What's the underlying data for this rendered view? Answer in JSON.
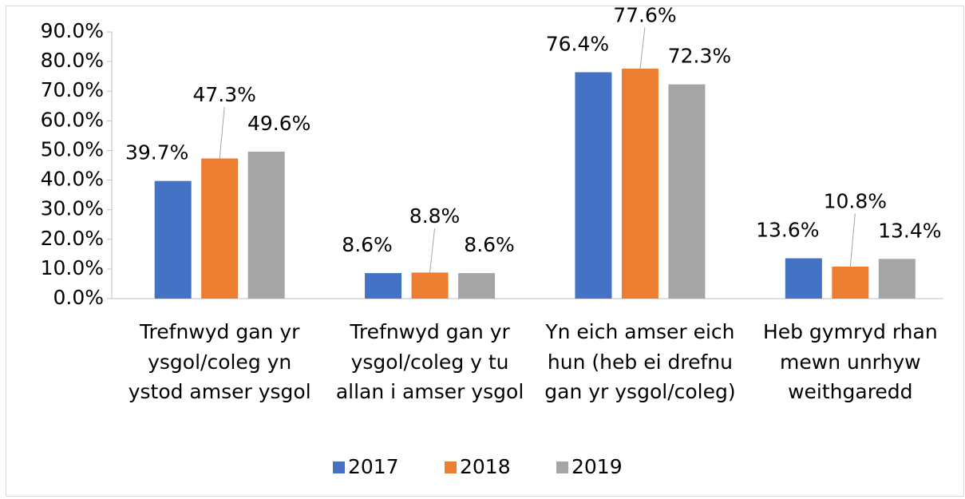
{
  "chart_data": {
    "type": "bar",
    "categories": [
      "Trefnwyd gan yr ysgol/coleg yn ystod amser ysgol",
      "Trefnwyd gan yr ysgol/coleg y tu allan i amser ysgol",
      "Yn eich amser eich hun (heb ei drefnu gan yr ysgol/coleg)",
      "Heb gymryd rhan mewn unrhyw weithgaredd"
    ],
    "series": [
      {
        "name": "2017",
        "color": "#4472c4",
        "values": [
          39.7,
          8.6,
          76.4,
          13.6
        ],
        "value_labels": [
          "39.7%",
          "8.6%",
          "76.4%",
          "13.6%"
        ]
      },
      {
        "name": "2018",
        "color": "#ed7d31",
        "values": [
          47.3,
          8.8,
          77.6,
          10.8
        ],
        "value_labels": [
          "47.3%",
          "8.8%",
          "77.6%",
          "10.8%"
        ]
      },
      {
        "name": "2019",
        "color": "#a5a5a5",
        "values": [
          49.6,
          8.6,
          72.3,
          13.4
        ],
        "value_labels": [
          "49.6%",
          "8.6%",
          "72.3%",
          "13.4%"
        ]
      }
    ],
    "ylim": [
      0,
      90
    ],
    "yticks": [
      {
        "value": 0,
        "label": "0.0%"
      },
      {
        "value": 10,
        "label": "10.0%"
      },
      {
        "value": 20,
        "label": "20.0%"
      },
      {
        "value": 30,
        "label": "30.0%"
      },
      {
        "value": 40,
        "label": "40.0%"
      },
      {
        "value": 50,
        "label": "50.0%"
      },
      {
        "value": 60,
        "label": "60.0%"
      },
      {
        "value": 70,
        "label": "70.0%"
      },
      {
        "value": 80,
        "label": "80.0%"
      },
      {
        "value": 90,
        "label": "90.0%"
      }
    ],
    "grid": false,
    "legend": "bottom"
  }
}
